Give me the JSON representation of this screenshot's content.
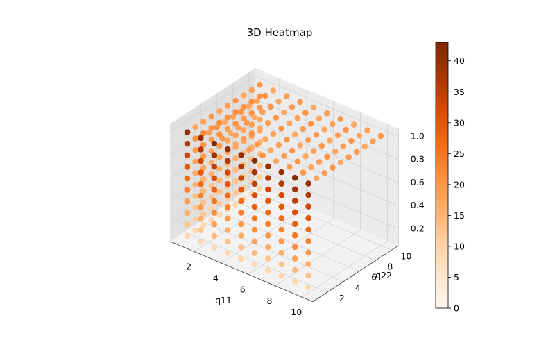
{
  "chart_data": {
    "type": "scatter",
    "subtype": "3d-voxel-heatmap",
    "title": "3D Heatmap",
    "xlabel": "q11",
    "ylabel": "q22",
    "zlabel": "",
    "x_range": [
      1,
      10
    ],
    "y_range": [
      1,
      10
    ],
    "z_range": [
      0.1,
      1.0
    ],
    "x_ticks": [
      2,
      4,
      6,
      8,
      10
    ],
    "y_ticks": [
      2,
      4,
      6,
      8,
      10
    ],
    "z_ticks": [
      0.2,
      0.4,
      0.6,
      0.8,
      1.0
    ],
    "grid": true,
    "grid_points": {
      "x_values": [
        1,
        2,
        3,
        4,
        5,
        6,
        7,
        8,
        9,
        10
      ],
      "y_values": [
        1,
        2,
        3,
        4,
        5,
        6,
        7,
        8,
        9,
        10
      ],
      "z_values": [
        0.1,
        0.2,
        0.3,
        0.4,
        0.5,
        0.6,
        0.7,
        0.8,
        0.9,
        1.0
      ]
    },
    "value_pattern": "value increases with z (height) and is highest on the front face at low q22; back faces mid-range ~15-20; bottom layer lowest ~5-10",
    "colormap": "Oranges",
    "colorbar": {
      "range": [
        0,
        43
      ],
      "ticks": [
        0,
        5,
        10,
        15,
        20,
        25,
        30,
        35,
        40
      ]
    }
  }
}
